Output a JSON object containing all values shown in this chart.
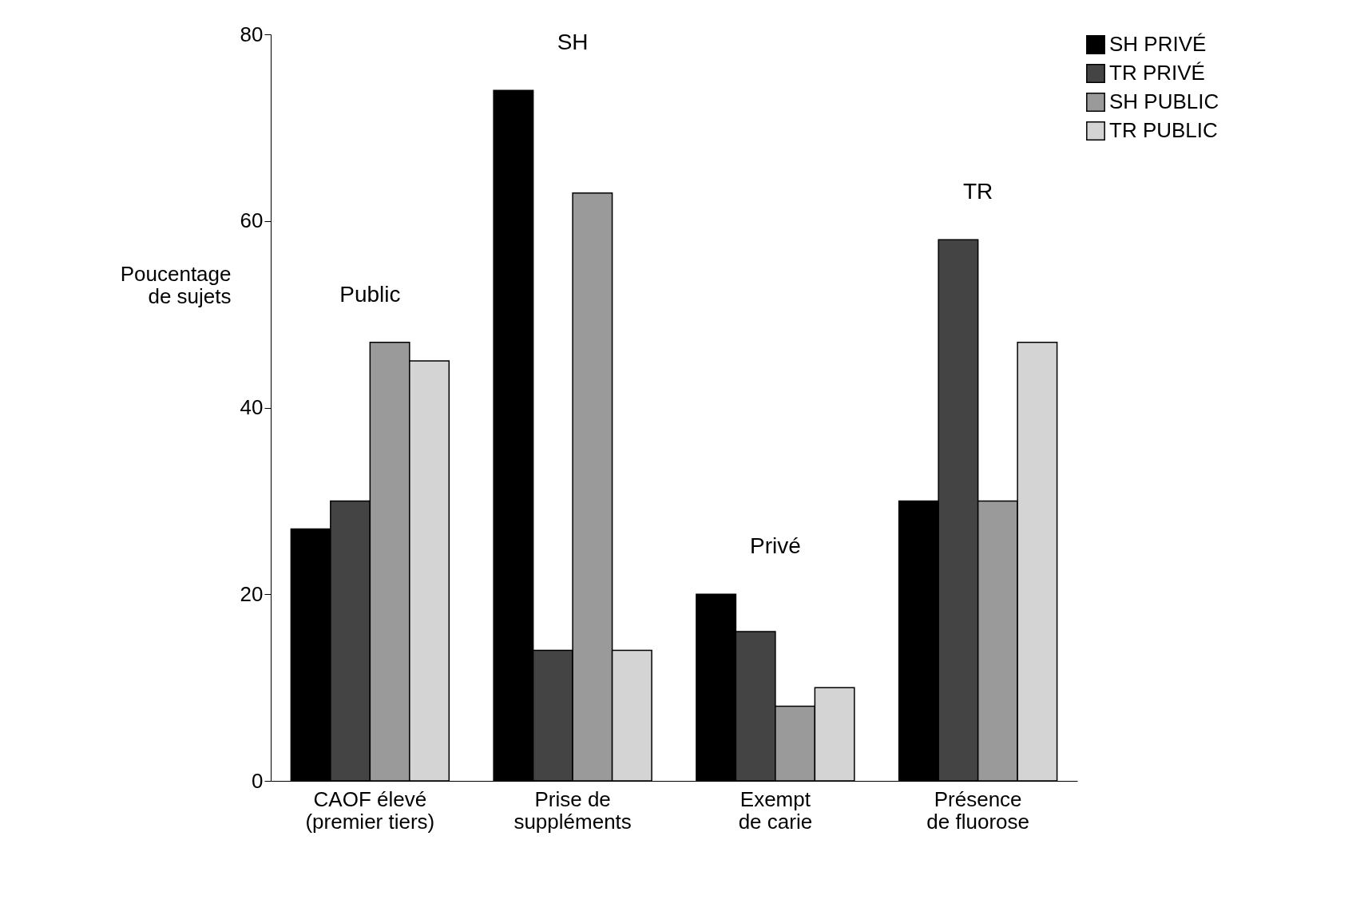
{
  "chart_data": {
    "type": "bar",
    "ylabel": "Poucentage\nde sujets",
    "categories": [
      "CAOF élevé\n(premier tiers)",
      "Prise de\nsuppléments",
      "Exempt\nde carie",
      "Présence\nde fluorose"
    ],
    "series": [
      {
        "name": "SH PRIVÉ",
        "color": "#000000",
        "values": [
          27,
          74,
          20,
          30
        ]
      },
      {
        "name": "TR PRIVÉ",
        "color": "#444444",
        "values": [
          30,
          14,
          16,
          58
        ]
      },
      {
        "name": "SH PUBLIC",
        "color": "#9a9a9a",
        "values": [
          47,
          63,
          8,
          30
        ]
      },
      {
        "name": "TR PUBLIC",
        "color": "#d4d4d4",
        "values": [
          45,
          14,
          10,
          47
        ]
      }
    ],
    "ylim": [
      0,
      80
    ],
    "yticks": [
      0,
      20,
      40,
      60,
      80
    ],
    "grid": false,
    "legend": "top right",
    "annotations": [
      "Public",
      "SH",
      "Privé",
      "TR"
    ]
  }
}
